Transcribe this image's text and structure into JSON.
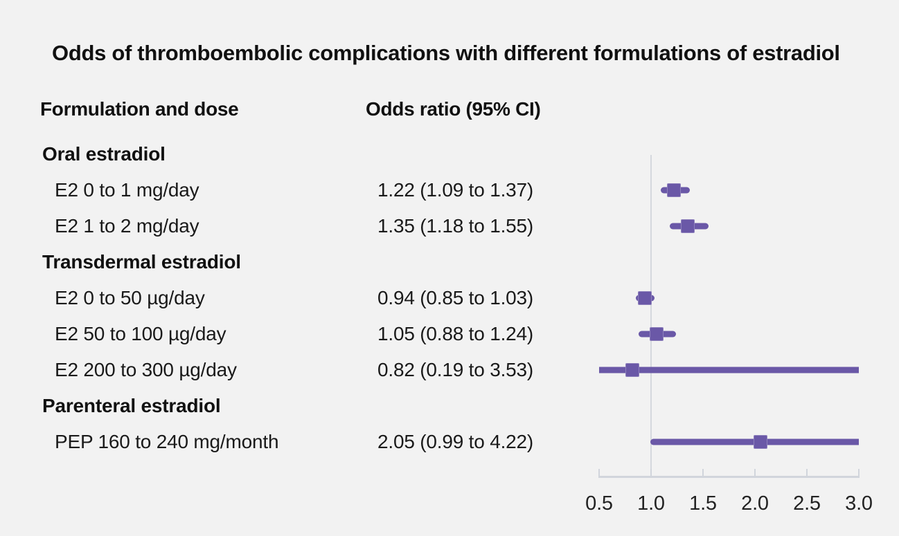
{
  "chart_data": {
    "type": "forest",
    "title": "Odds of thromboembolic complications with different formulations of estradiol",
    "columns": {
      "formulation": "Formulation and dose",
      "odds_ratio": "Odds ratio (95% CI)"
    },
    "axis": {
      "min": 0.5,
      "max": 3.0,
      "reference_line": 1.0,
      "ticks": [
        0.5,
        1.0,
        1.5,
        2.0,
        2.5,
        3.0
      ],
      "tick_labels": [
        "0.5",
        "1.0",
        "1.5",
        "2.0",
        "2.5",
        "3.0"
      ]
    },
    "groups": [
      {
        "label": "Oral estradiol",
        "items": [
          {
            "label": "E2 0 to 1 mg/day",
            "or": 1.22,
            "ci_low": 1.09,
            "ci_high": 1.37,
            "text": "1.22 (1.09 to 1.37)"
          },
          {
            "label": "E2 1 to 2 mg/day",
            "or": 1.35,
            "ci_low": 1.18,
            "ci_high": 1.55,
            "text": "1.35 (1.18 to 1.55)"
          }
        ]
      },
      {
        "label": "Transdermal estradiol",
        "items": [
          {
            "label": "E2 0 to 50 µg/day",
            "or": 0.94,
            "ci_low": 0.85,
            "ci_high": 1.03,
            "text": "0.94 (0.85 to 1.03)"
          },
          {
            "label": "E2 50 to 100 µg/day",
            "or": 1.05,
            "ci_low": 0.88,
            "ci_high": 1.24,
            "text": "1.05 (0.88 to 1.24)"
          },
          {
            "label": "E2 200 to 300 µg/day",
            "or": 0.82,
            "ci_low": 0.19,
            "ci_high": 3.53,
            "text": "0.82 (0.19 to 3.53)"
          }
        ]
      },
      {
        "label": "Parenteral estradiol",
        "items": [
          {
            "label": "PEP 160 to 240 mg/month",
            "or": 2.05,
            "ci_low": 0.99,
            "ci_high": 4.22,
            "text": "2.05 (0.99 to 4.22)"
          }
        ]
      }
    ],
    "colors": {
      "marker": "#6a58a7",
      "ci_line": "#6a58a7",
      "reference_line": "#d5d8de",
      "axis": "#d1d5dc",
      "background": "#f2f2f2",
      "text": "#1a1a1a"
    }
  }
}
